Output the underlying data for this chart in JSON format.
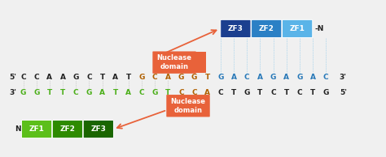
{
  "bg_color": "#f0f0f0",
  "top_seq_black": [
    "C",
    "C",
    "A",
    "A",
    "G",
    "C",
    "T",
    "A",
    "T"
  ],
  "top_seq_orange": [
    "G",
    "C",
    "A",
    "G",
    "G",
    "T"
  ],
  "top_seq_blue": [
    "G",
    "A",
    "C",
    "A",
    "G",
    "A",
    "G",
    "A",
    "C"
  ],
  "bot_seq_green": [
    "G",
    "G",
    "T",
    "T",
    "C",
    "G",
    "A",
    "T",
    "A",
    "C",
    "G",
    "T"
  ],
  "bot_seq_orange": [
    "C",
    "C",
    "A"
  ],
  "bot_seq_black": [
    "C",
    "T",
    "G",
    "T",
    "C",
    "T",
    "C",
    "T",
    "G"
  ],
  "zf_top_labels": [
    "ZF3",
    "ZF2",
    "ZF1"
  ],
  "zf_top_colors": [
    "#1b3f8f",
    "#2b80c5",
    "#5ab4e8"
  ],
  "zf_bot_labels": [
    "ZF1",
    "ZF2",
    "ZF3"
  ],
  "zf_bot_colors": [
    "#5cbf1a",
    "#2e8b00",
    "#1a6600"
  ],
  "nuclease_color": "#e8623a",
  "nuclease_text": "Nuclease\ndomain",
  "black": "#222222",
  "orange_nt": "#b06000",
  "blue_nt": "#2979b8",
  "green_nt": "#4caf1a"
}
